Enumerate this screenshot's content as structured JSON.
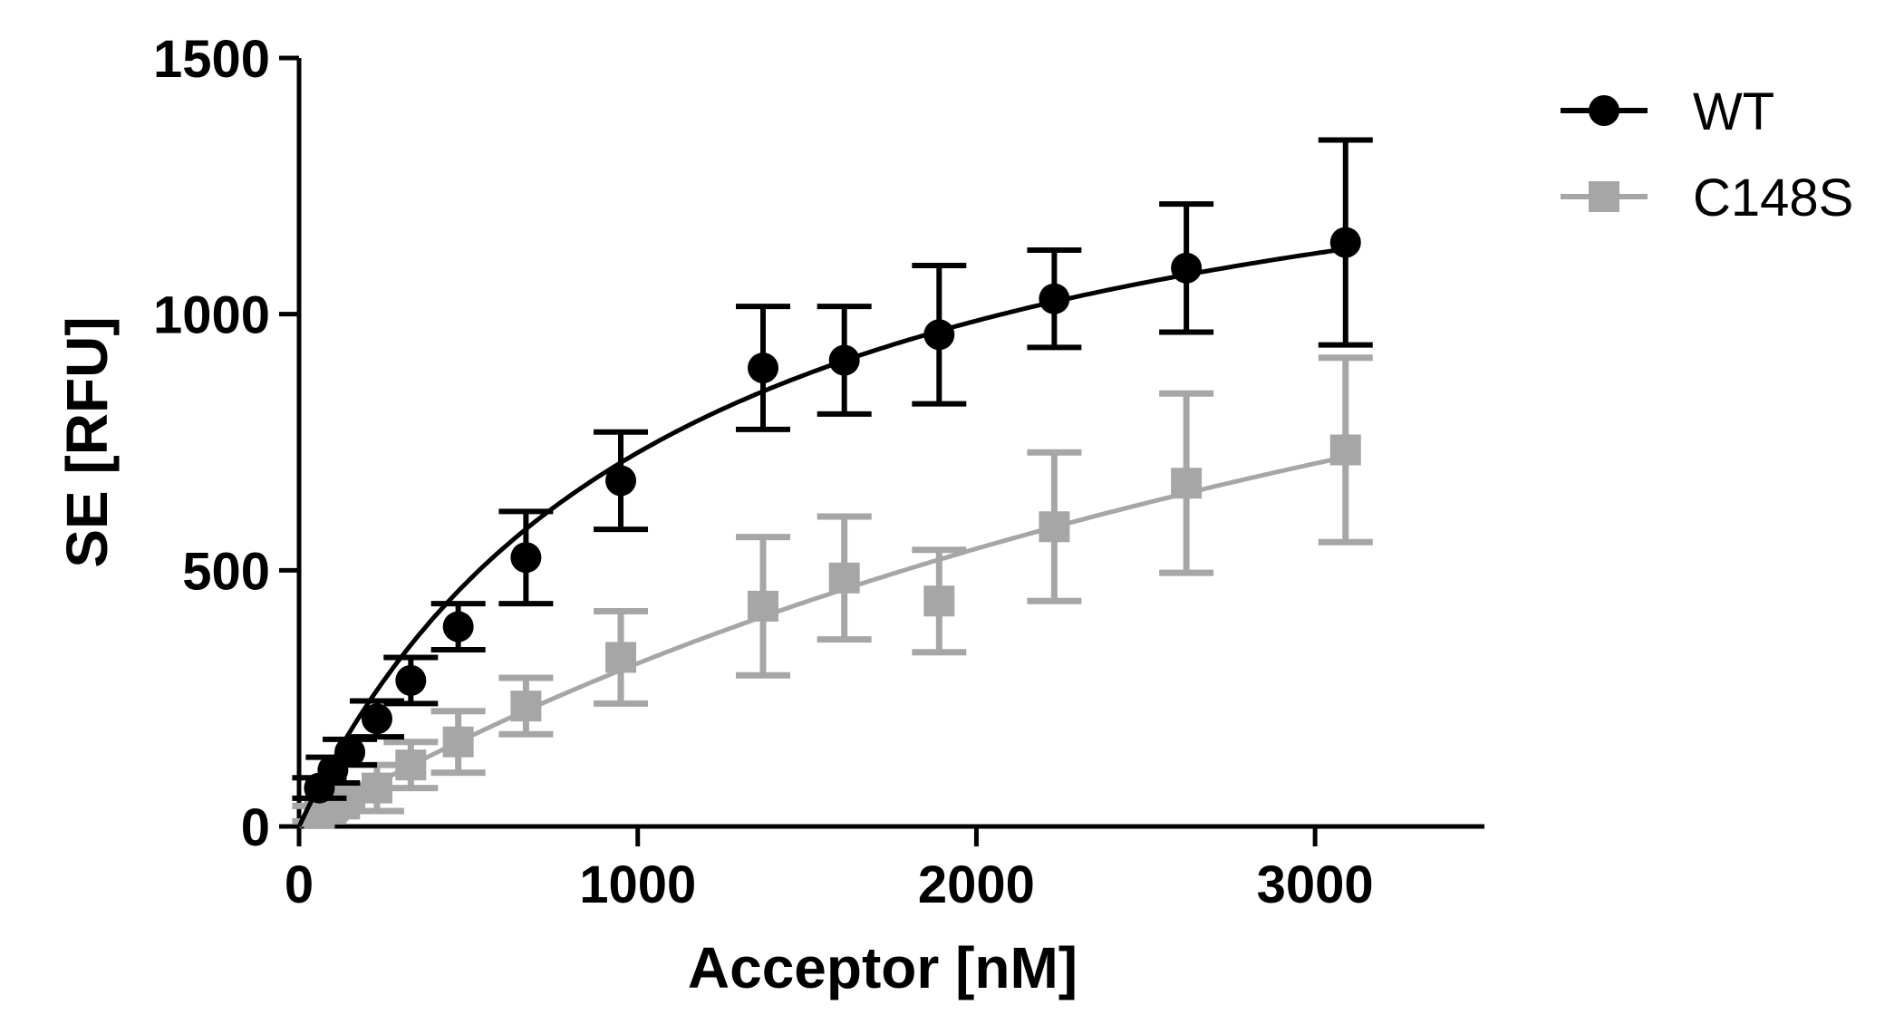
{
  "chart_data": {
    "type": "scatter",
    "title": "",
    "xlabel": "Acceptor [nM]",
    "ylabel": "SE [RFU]",
    "xlim": [
      0,
      3500
    ],
    "ylim": [
      0,
      1500
    ],
    "xticks": [
      0,
      1000,
      2000,
      3000
    ],
    "yticks": [
      0,
      500,
      1000,
      1500
    ],
    "xtick_labels": [
      "0",
      "1000",
      "2000",
      "3000"
    ],
    "ytick_labels": [
      "0",
      "500",
      "1000",
      "1500"
    ],
    "grid": false,
    "legend": "top-right",
    "series": [
      {
        "name": "WT",
        "color": "#000000",
        "marker": "circle",
        "x": [
          60,
          100,
          150,
          230,
          330,
          470,
          670,
          950,
          1370,
          1610,
          1890,
          2230,
          2620,
          3090
        ],
        "y": [
          75,
          110,
          145,
          210,
          285,
          390,
          525,
          675,
          895,
          910,
          960,
          1030,
          1090,
          1140
        ],
        "yerr": [
          20,
          25,
          25,
          35,
          45,
          45,
          90,
          95,
          120,
          105,
          135,
          95,
          125,
          200
        ],
        "fit": {
          "model": "one-site saturation",
          "bmax": 1525,
          "kd": 1090
        }
      },
      {
        "name": "C148S",
        "color": "#a6a6a6",
        "marker": "square",
        "x": [
          60,
          100,
          150,
          230,
          330,
          470,
          670,
          950,
          1370,
          1610,
          1890,
          2230,
          2620,
          3090
        ],
        "y": [
          25,
          40,
          55,
          75,
          120,
          165,
          235,
          330,
          430,
          485,
          440,
          585,
          670,
          735
        ],
        "yerr": [
          15,
          20,
          25,
          45,
          45,
          60,
          55,
          90,
          135,
          120,
          100,
          145,
          175,
          180
        ],
        "fit": {
          "model": "one-site saturation",
          "bmax": 1830,
          "kd": 4750
        }
      }
    ]
  }
}
